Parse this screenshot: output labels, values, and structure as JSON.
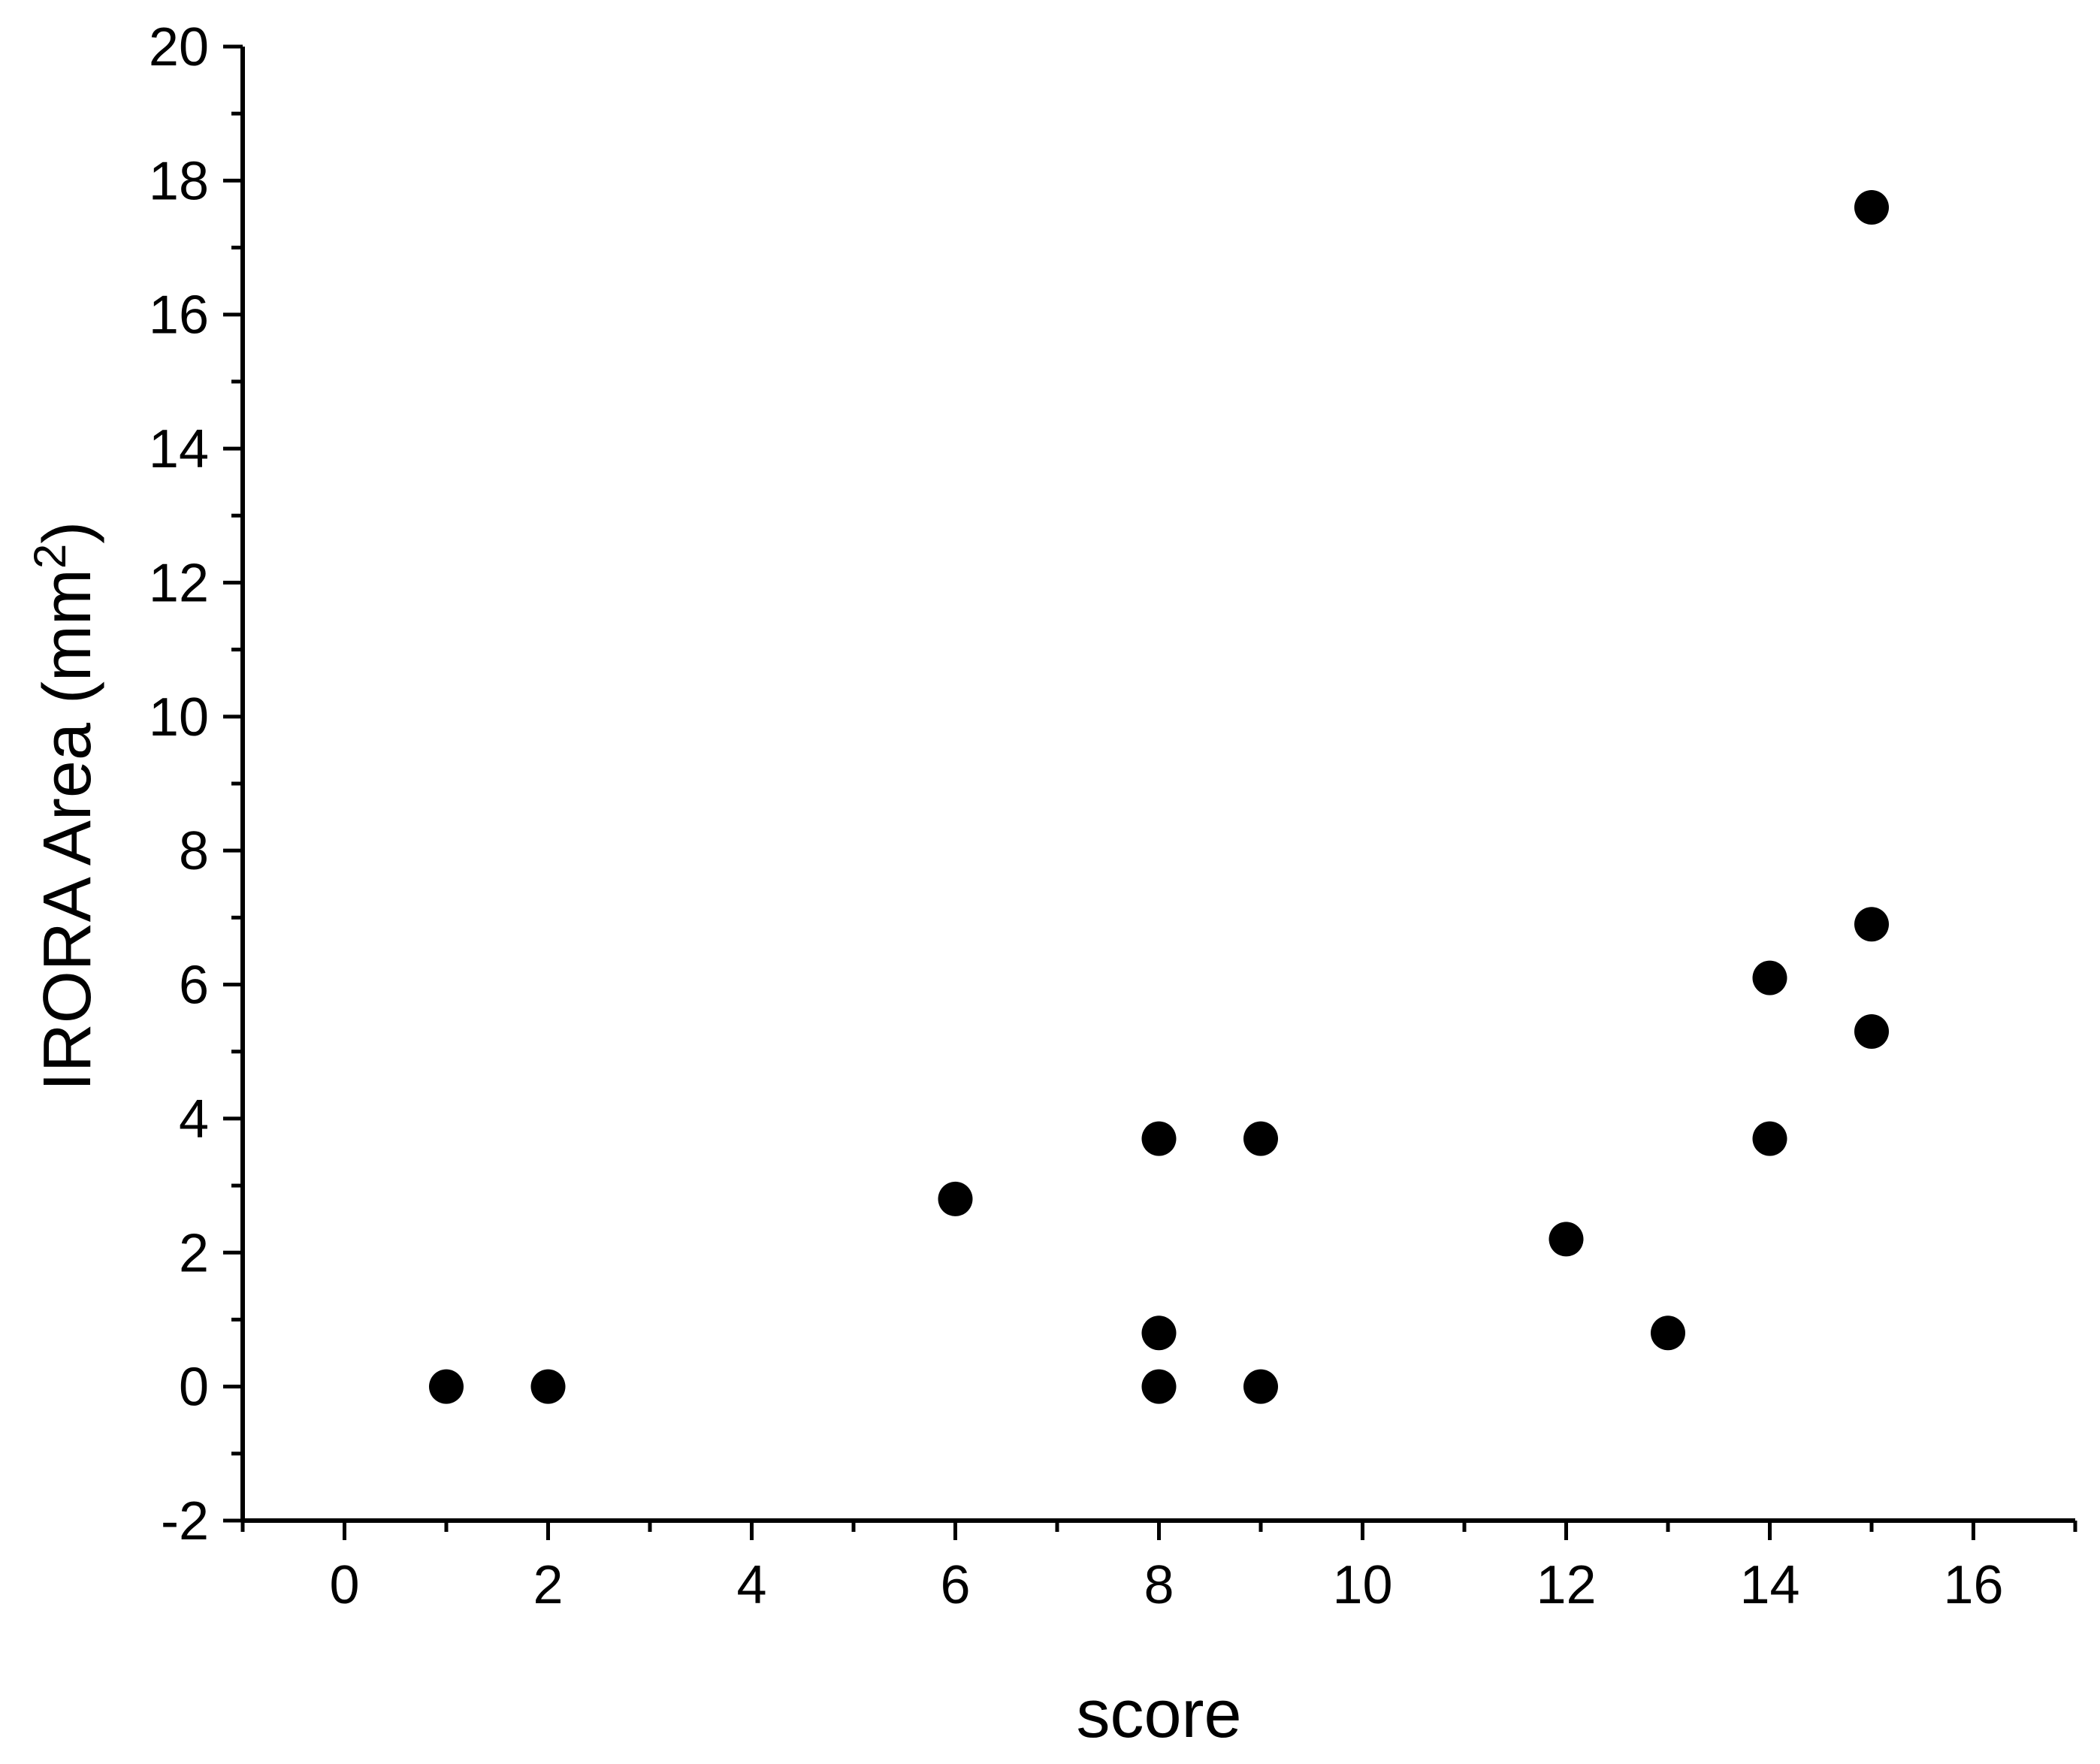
{
  "chart_data": {
    "type": "scatter",
    "title": "",
    "xlabel": "score",
    "ylabel_main": "IRORA Area (mm",
    "ylabel_sup": "2",
    "ylabel_close": ")",
    "xlim": [
      -1,
      17
    ],
    "ylim": [
      -2,
      20
    ],
    "xticks": [
      0,
      2,
      4,
      6,
      8,
      10,
      12,
      14,
      16
    ],
    "yticks": [
      -2,
      0,
      2,
      4,
      6,
      8,
      10,
      12,
      14,
      16,
      18,
      20
    ],
    "xminor": [
      -1,
      1,
      3,
      5,
      7,
      9,
      11,
      13,
      15,
      17
    ],
    "yminor": [
      -1,
      1,
      3,
      5,
      7,
      9,
      11,
      13,
      15,
      17,
      19
    ],
    "grid": false,
    "legend": "none",
    "marker_color": "#000000",
    "points": [
      {
        "x": 1,
        "y": 0
      },
      {
        "x": 2,
        "y": 0
      },
      {
        "x": 6,
        "y": 2.8
      },
      {
        "x": 8,
        "y": 3.7
      },
      {
        "x": 8,
        "y": 0.8
      },
      {
        "x": 8,
        "y": 0
      },
      {
        "x": 9,
        "y": 3.7
      },
      {
        "x": 9,
        "y": 0
      },
      {
        "x": 12,
        "y": 2.2
      },
      {
        "x": 13,
        "y": 0.8
      },
      {
        "x": 14,
        "y": 6.1
      },
      {
        "x": 14,
        "y": 3.7
      },
      {
        "x": 15,
        "y": 17.6
      },
      {
        "x": 15,
        "y": 6.9
      },
      {
        "x": 15,
        "y": 5.3
      }
    ]
  }
}
